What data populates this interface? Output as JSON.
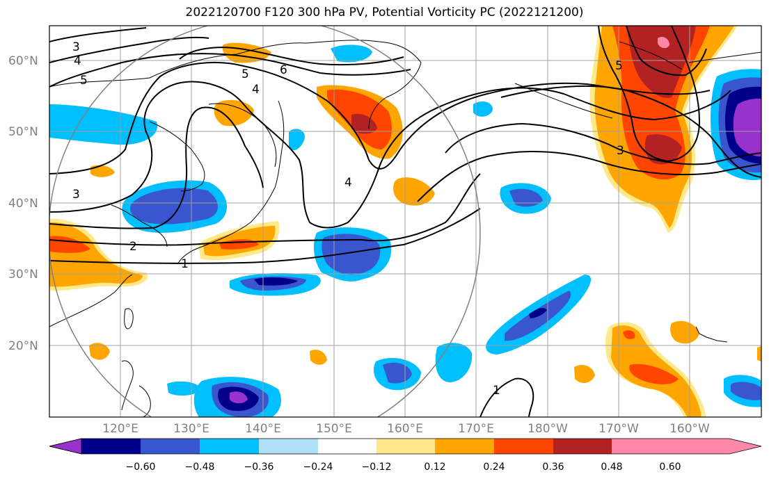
{
  "title": "2022120700 F120 300 hPa PV, Potential Vorticity PC (2022121200)",
  "lat_labels": [
    "60°N",
    "50°N",
    "40°N",
    "30°N",
    "20°N"
  ],
  "lon_labels": [
    "120°E",
    "130°E",
    "140°E",
    "150°E",
    "160°E",
    "170°E",
    "180°W",
    "170°W",
    "160°W"
  ],
  "colorbar": {
    "labels": [
      "−0.60",
      "−0.48",
      "−0.36",
      "−0.24",
      "−0.12",
      "0.12",
      "0.24",
      "0.36",
      "0.48",
      "0.60"
    ],
    "colors": [
      "#9932cc",
      "#00008b",
      "#3a56cf",
      "#00bfff",
      "#b0e0f8",
      "#ffffff",
      "#ffe98a",
      "#ffa500",
      "#ff4500",
      "#b22222",
      "#ff88aa"
    ]
  },
  "contour_labels": [
    "3",
    "4",
    "5",
    "6",
    "5",
    "4",
    "2",
    "1",
    "3",
    "4",
    "5",
    "3",
    "1"
  ],
  "colors": {
    "neg_strong": "#00008b",
    "neg_mid": "#3a56cf",
    "neg_light": "#00bfff",
    "pos_light": "#ffa500",
    "pos_mid": "#ff4500",
    "pos_strong": "#b22222"
  }
}
